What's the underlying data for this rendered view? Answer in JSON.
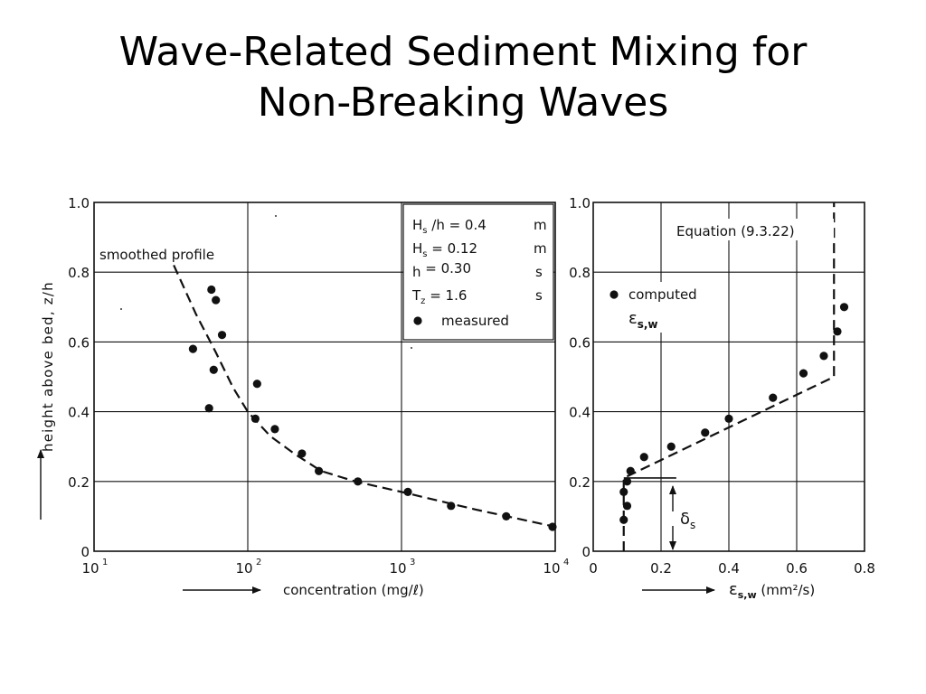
{
  "slide": {
    "title_line1": "Wave-Related Sediment Mixing for",
    "title_line2": "Non-Breaking Waves"
  },
  "colors": {
    "ink": "#111111",
    "background": "#ffffff"
  },
  "chart_data": [
    {
      "type": "scatter",
      "xscale": "log",
      "xlim": [
        10,
        10000
      ],
      "ylim": [
        0,
        1.0
      ],
      "x_tick_labels": [
        "10",
        "10",
        "10",
        "10"
      ],
      "x_tick_exponents": [
        "1",
        "2",
        "3",
        "4"
      ],
      "y_tick_labels": [
        "0",
        "0.2",
        "0.4",
        "0.6",
        "0.8",
        "1.0"
      ],
      "xlabel": "concentration (mg/ℓ)",
      "ylabel": "height above bed, z/h",
      "annotation": "smoothed profile",
      "legend": {
        "rows": [
          {
            "label": "H",
            "sub": "s",
            "tail": " /h = 0.4",
            "unit": "m"
          },
          {
            "label": "H",
            "sub": "s",
            "tail": " = 0.12",
            "unit": "m"
          },
          {
            "label": "h",
            "sub": "",
            "tail": " = 0.30",
            "unit": "s"
          },
          {
            "label": "T",
            "sub": "z",
            "tail": " = 1.6",
            "unit": "s"
          }
        ],
        "marker_label": "measured"
      },
      "series": [
        {
          "name": "measured",
          "kind": "points",
          "points": [
            [
              58,
              0.75
            ],
            [
              62,
              0.72
            ],
            [
              68,
              0.62
            ],
            [
              44,
              0.58
            ],
            [
              60,
              0.52
            ],
            [
              115,
              0.48
            ],
            [
              56,
              0.41
            ],
            [
              112,
              0.38
            ],
            [
              150,
              0.35
            ],
            [
              225,
              0.28
            ],
            [
              290,
              0.23
            ],
            [
              520,
              0.2
            ],
            [
              1100,
              0.17
            ],
            [
              2100,
              0.13
            ],
            [
              4800,
              0.1
            ],
            [
              9600,
              0.07
            ]
          ]
        },
        {
          "name": "smoothed profile",
          "kind": "dashed-line",
          "points": [
            [
              33,
              0.82
            ],
            [
              46,
              0.68
            ],
            [
              62,
              0.57
            ],
            [
              80,
              0.47
            ],
            [
              100,
              0.4
            ],
            [
              140,
              0.33
            ],
            [
              200,
              0.28
            ],
            [
              300,
              0.23
            ],
            [
              500,
              0.2
            ],
            [
              1000,
              0.17
            ],
            [
              3000,
              0.12
            ],
            [
              10000,
              0.07
            ]
          ]
        }
      ]
    },
    {
      "type": "scatter",
      "xlim": [
        0,
        0.8
      ],
      "ylim": [
        0,
        1.0
      ],
      "x_tick_labels": [
        "0",
        "0.2",
        "0.4",
        "0.6",
        "0.8"
      ],
      "y_tick_labels": [
        "0",
        "0.2",
        "0.4",
        "0.6",
        "0.8",
        "1.0"
      ],
      "xlabel_main": "ε",
      "xlabel_sub": "s,w",
      "xlabel_unit": " (mm²/s)",
      "equation_label": "Equation (9.3.22)",
      "legend_marker_label": "computed",
      "legend_symbol": "ε",
      "legend_symbol_sub": "s,w",
      "delta_label": "δ",
      "delta_sub": "s",
      "series": [
        {
          "name": "computed",
          "kind": "points",
          "points": [
            [
              0.74,
              0.7
            ],
            [
              0.72,
              0.63
            ],
            [
              0.68,
              0.56
            ],
            [
              0.62,
              0.51
            ],
            [
              0.53,
              0.44
            ],
            [
              0.4,
              0.38
            ],
            [
              0.33,
              0.34
            ],
            [
              0.23,
              0.3
            ],
            [
              0.15,
              0.27
            ],
            [
              0.11,
              0.23
            ],
            [
              0.1,
              0.2
            ],
            [
              0.09,
              0.17
            ],
            [
              0.1,
              0.13
            ],
            [
              0.09,
              0.09
            ]
          ]
        },
        {
          "name": "Equation (9.3.22)",
          "kind": "dashed-line",
          "points": [
            [
              0.09,
              0.0
            ],
            [
              0.09,
              0.21
            ],
            [
              0.71,
              0.5
            ],
            [
              0.71,
              1.0
            ]
          ]
        }
      ]
    }
  ]
}
